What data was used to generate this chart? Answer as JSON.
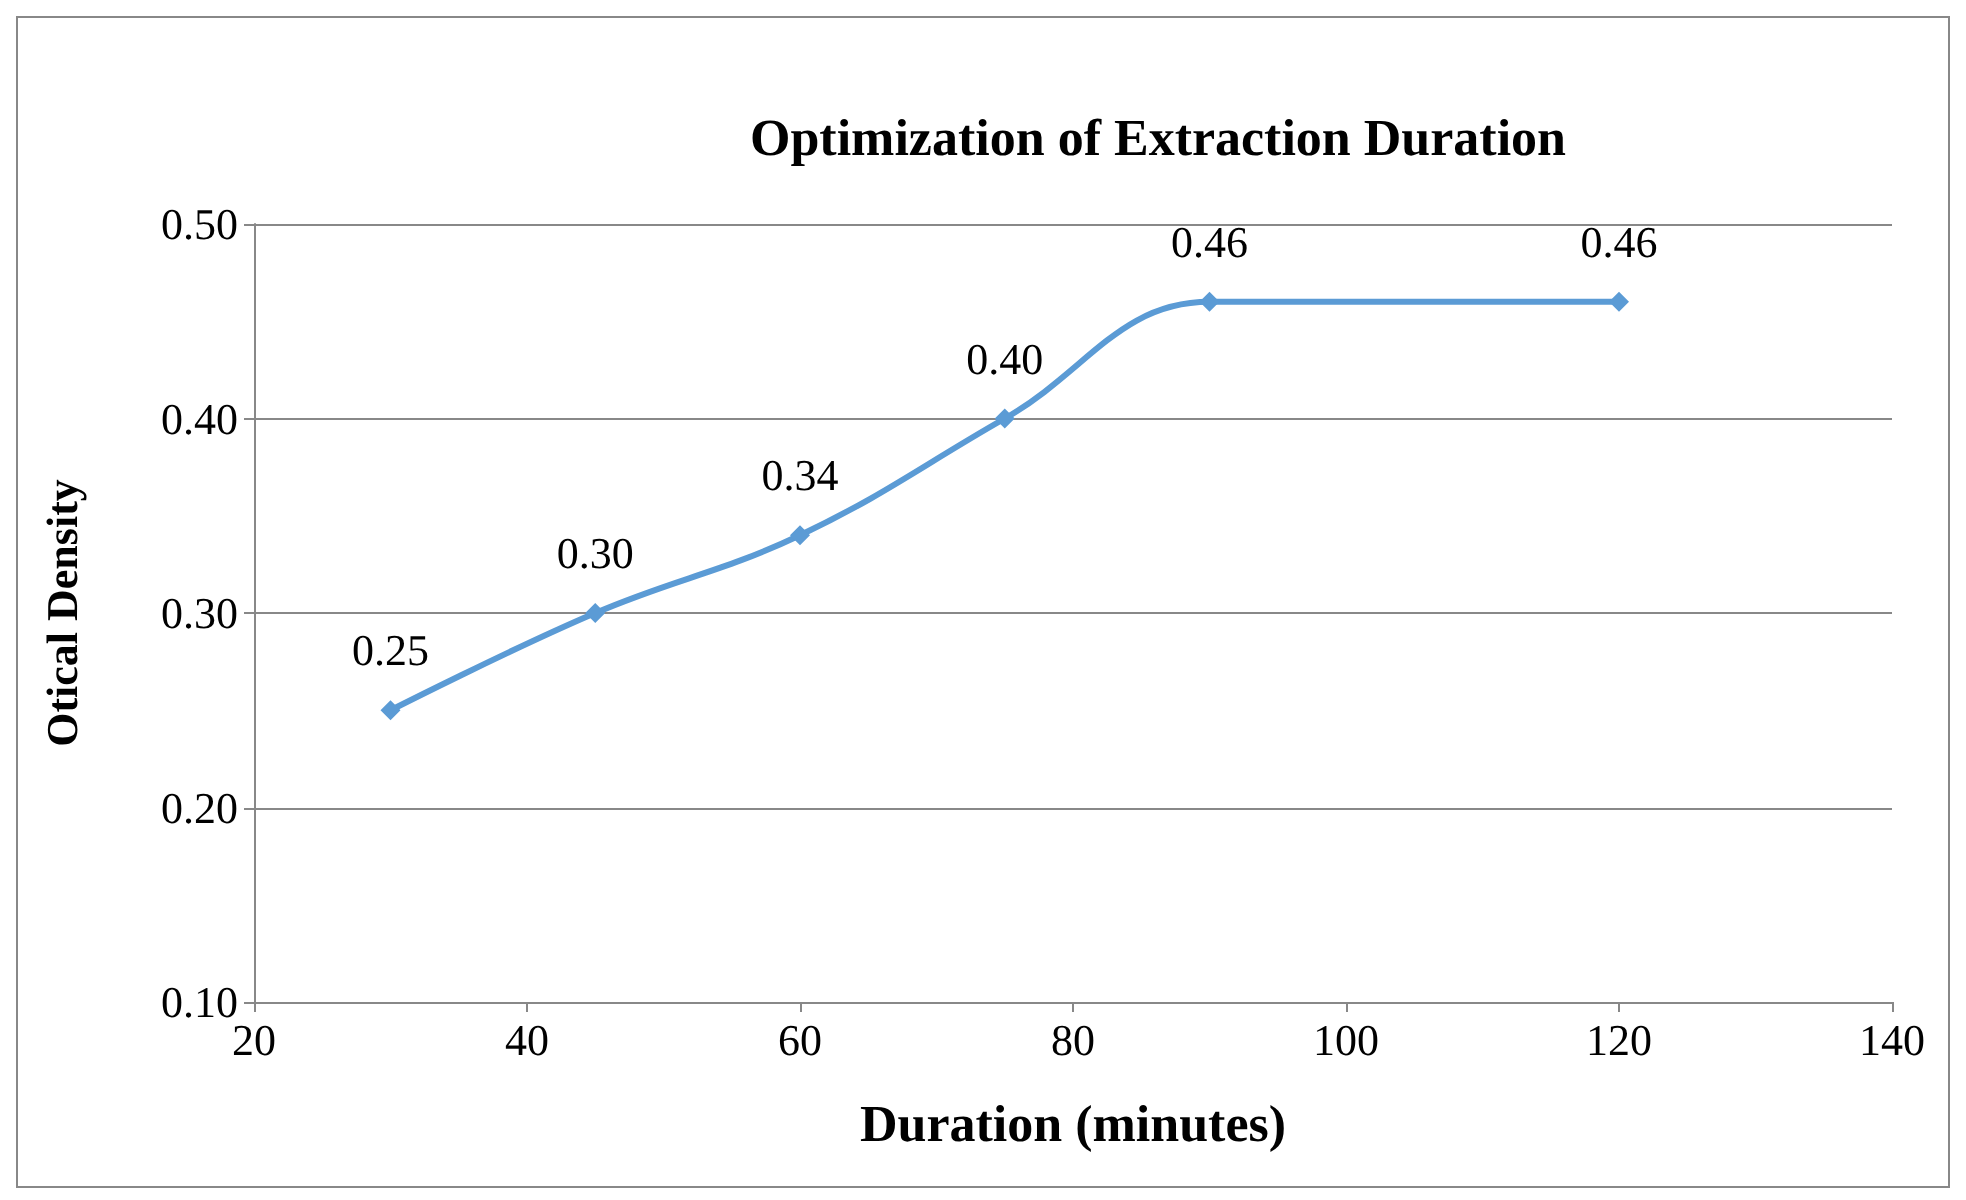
{
  "chart_data": {
    "type": "line",
    "title": "Optimization of Extraction Duration",
    "xlabel": "Duration (minutes)",
    "ylabel": "Otical Density",
    "x": [
      30,
      45,
      60,
      75,
      90,
      120
    ],
    "series": [
      {
        "color": "#5b9bd5",
        "values": [
          0.25,
          0.3,
          0.34,
          0.4,
          0.46,
          0.46
        ],
        "value_labels": [
          "0.25",
          "0.30",
          "0.34",
          "0.40",
          "0.46",
          "0.46"
        ]
      }
    ],
    "xlim": [
      20,
      140
    ],
    "xticks": [
      20,
      40,
      60,
      80,
      100,
      120,
      140
    ],
    "ylim": [
      0.1,
      0.5
    ],
    "yticks": [
      {
        "value": 0.1,
        "label": "0.10"
      },
      {
        "value": 0.2,
        "label": "0.20"
      },
      {
        "value": 0.3,
        "label": "0.30"
      },
      {
        "value": 0.4,
        "label": "0.40"
      },
      {
        "value": 0.5,
        "label": "0.50"
      }
    ],
    "grid": "y",
    "marker": "diamond",
    "line_style": "solid"
  }
}
